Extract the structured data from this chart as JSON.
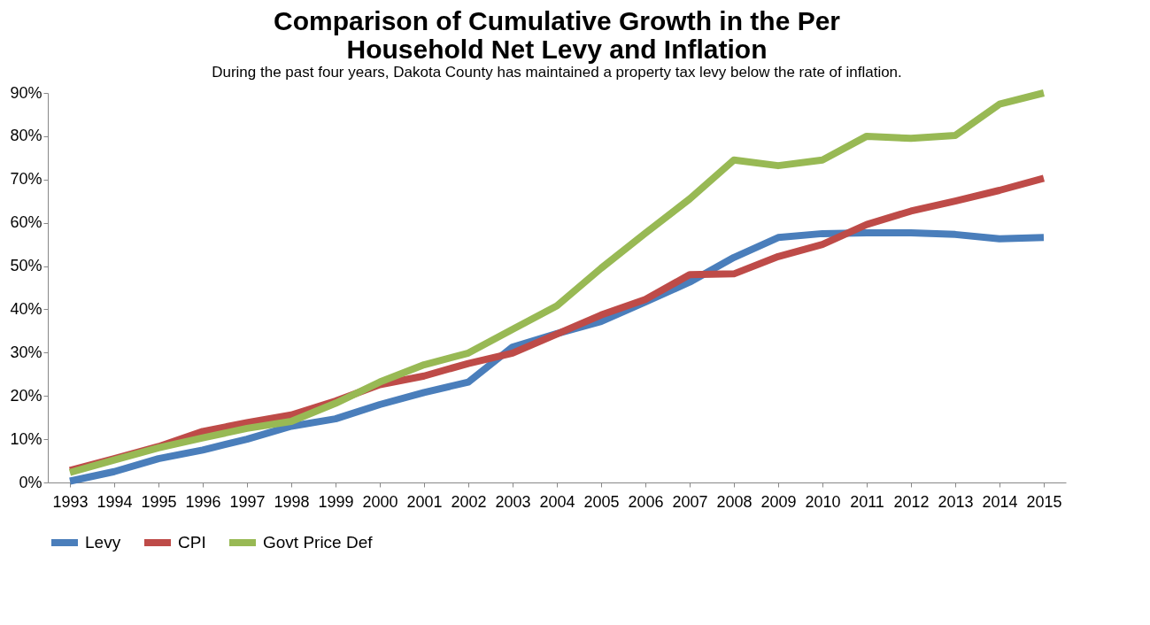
{
  "chart_data": {
    "type": "line",
    "title": "Comparison of Cumulative Growth in the Per Household Net Levy and Inflation",
    "subtitle": "During the past four years, Dakota County has maintained a property tax levy below the rate of inflation.",
    "categories": [
      "1993",
      "1994",
      "1995",
      "1996",
      "1997",
      "1998",
      "1999",
      "2000",
      "2001",
      "2002",
      "2003",
      "2004",
      "2005",
      "2006",
      "2007",
      "2008",
      "2009",
      "2010",
      "2011",
      "2012",
      "2013",
      "2014",
      "2015"
    ],
    "series": [
      {
        "name": "Levy",
        "color": "#4a7ebb",
        "values": [
          0.3,
          2.5,
          5.5,
          7.5,
          10,
          13,
          14.7,
          18,
          20.8,
          23.2,
          31.3,
          34.4,
          37.2,
          41.7,
          46.3,
          52,
          56.6,
          57.5,
          57.7,
          57.7,
          57.3,
          56.3,
          56.6
        ]
      },
      {
        "name": "CPI",
        "color": "#be4b48",
        "values": [
          2.8,
          5.5,
          8.3,
          11.8,
          13.8,
          15.6,
          18.8,
          22.6,
          24.6,
          27.5,
          29.9,
          34.3,
          38.7,
          42.3,
          48,
          48.2,
          52.2,
          55,
          59.6,
          62.7,
          65,
          67.5,
          70.3
        ]
      },
      {
        "name": "Govt Price Def",
        "color": "#98b954",
        "values": [
          2.3,
          5.2,
          8,
          10.3,
          12.5,
          14.1,
          18.3,
          23.2,
          27.2,
          29.9,
          35.4,
          40.8,
          49.5,
          57.6,
          65.5,
          74.5,
          73.2,
          74.5,
          80,
          79.5,
          80.2,
          87.4,
          90
        ]
      }
    ],
    "ylim": [
      0,
      90
    ],
    "yticks": [
      {
        "value": 0,
        "label": "0%"
      },
      {
        "value": 10,
        "label": "10%"
      },
      {
        "value": 20,
        "label": "20%"
      },
      {
        "value": 30,
        "label": "30%"
      },
      {
        "value": 40,
        "label": "40%"
      },
      {
        "value": 50,
        "label": "50%"
      },
      {
        "value": 60,
        "label": "60%"
      },
      {
        "value": 70,
        "label": "70%"
      },
      {
        "value": 80,
        "label": "80%"
      },
      {
        "value": 90,
        "label": "90%"
      }
    ],
    "legend": "bottom"
  }
}
